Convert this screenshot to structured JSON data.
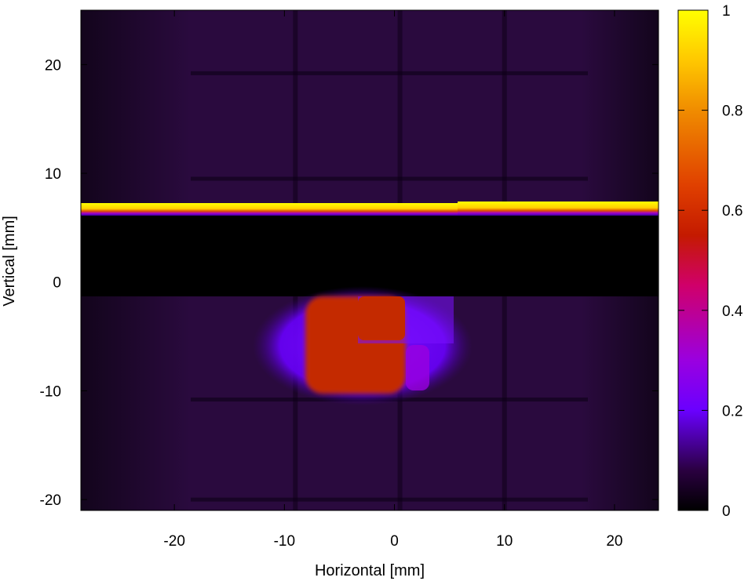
{
  "chart_data": {
    "type": "heatmap",
    "title": "",
    "xlabel": "Horizontal [mm]",
    "ylabel": "Vertical [mm]",
    "xlim": [
      -28.5,
      24
    ],
    "ylim": [
      -21,
      25
    ],
    "x_ticks": [
      -20,
      -10,
      0,
      10,
      20
    ],
    "y_ticks": [
      -20,
      -10,
      0,
      10,
      20
    ],
    "x_tick_labels": [
      "-20",
      "-10",
      "0",
      "10",
      "20"
    ],
    "y_tick_labels": [
      "-20",
      "-10",
      "0",
      "10",
      "20"
    ],
    "colorbar": {
      "range": [
        0,
        1
      ],
      "ticks": [
        0,
        0.2,
        0.4,
        0.6,
        0.8,
        1
      ],
      "tick_labels": [
        "0",
        "0.2",
        "0.4",
        "0.6",
        "0.8",
        "1"
      ],
      "colormap": "black-blue-purple-red-yellow",
      "stops": [
        {
          "value": 0,
          "color": "#000000"
        },
        {
          "value": 0.08,
          "color": "#2a0040"
        },
        {
          "value": 0.2,
          "color": "#6a00ff"
        },
        {
          "value": 0.3,
          "color": "#9a00e0"
        },
        {
          "value": 0.45,
          "color": "#d0006a"
        },
        {
          "value": 0.55,
          "color": "#c41a00"
        },
        {
          "value": 0.65,
          "color": "#e04000"
        },
        {
          "value": 0.8,
          "color": "#f08c00"
        },
        {
          "value": 0.9,
          "color": "#ffc800"
        },
        {
          "value": 1,
          "color": "#ffff00"
        }
      ]
    },
    "regions": [
      {
        "name": "background",
        "value": 0.07
      },
      {
        "name": "dark-band",
        "y_range": [
          -1,
          6.3
        ],
        "value": 0.0
      },
      {
        "name": "saturated-edge",
        "y_range": [
          6.5,
          7.4
        ],
        "value": 1.0
      },
      {
        "name": "beam-spot-core",
        "x_range": [
          -8,
          0.5
        ],
        "y_range": [
          -10,
          -1
        ],
        "value": 0.55
      },
      {
        "name": "beam-spot-halo",
        "x_range": [
          -12,
          5.5
        ],
        "y_range": [
          -11,
          -1
        ],
        "value": 0.25
      }
    ]
  }
}
